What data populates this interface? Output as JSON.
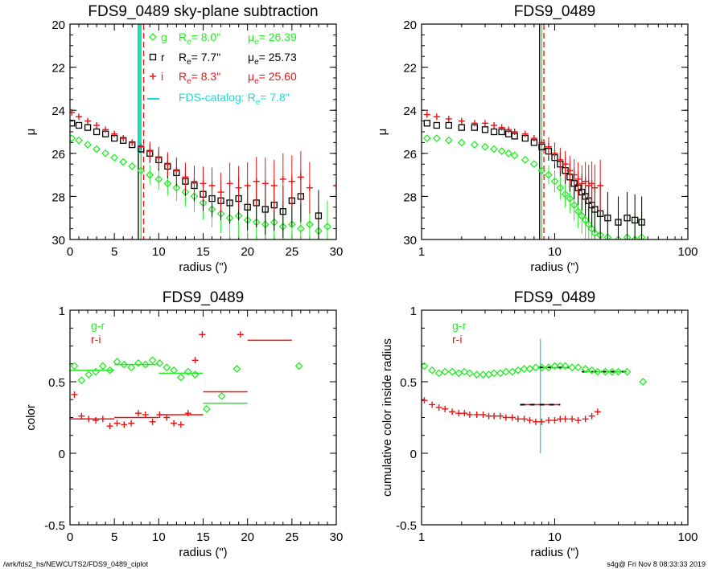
{
  "colors": {
    "g": "#22ee22",
    "r": "#000000",
    "i": "#ee1111",
    "catalog": "#11dddd"
  },
  "footer": {
    "left": "/wrk/fds2_hs/NEWCUTS2/FDS9_0489_ciplot",
    "right": "s4g@  Fri Nov  8 08:33:33 2019"
  },
  "chart_data": [
    {
      "id": "profile-linear",
      "type": "scatter",
      "title": "FDS9_0489 sky-plane subtraction",
      "xlabel": "radius (\")",
      "ylabel": "μ",
      "xlim": [
        0,
        30
      ],
      "ylim": [
        30,
        20
      ],
      "xticks": [
        0,
        5,
        10,
        15,
        20,
        25,
        30
      ],
      "yticks": [
        20,
        22,
        24,
        26,
        28,
        30
      ],
      "legend": {
        "placement": "top-right",
        "entries": [
          {
            "band": "g",
            "marker": "diamond",
            "re_label": "R",
            "re_sub": "e",
            "re_value": "=   8.0\"",
            "mu_label": "μ",
            "mu_sub": "e",
            "mu_value": "= 26.39"
          },
          {
            "band": "r",
            "marker": "square",
            "re_label": "R",
            "re_sub": "e",
            "re_value": "=   7.7\"",
            "mu_label": "μ",
            "mu_sub": "e",
            "mu_value": "= 25.73"
          },
          {
            "band": "i",
            "marker": "plus",
            "re_label": "R",
            "re_sub": "e",
            "re_value": "=   8.3\"",
            "mu_label": "μ",
            "mu_sub": "e",
            "mu_value": "= 25.60"
          }
        ],
        "catalog_prefix": "FDS-catalog: R",
        "catalog_sub": "e",
        "catalog_value": "=   7.8\""
      },
      "vlines": [
        {
          "band": "r",
          "x": 7.7,
          "style": "solid"
        },
        {
          "band": "g",
          "x": 8.0,
          "style": "solid"
        },
        {
          "band": "i",
          "x": 8.3,
          "style": "dashed"
        },
        {
          "band": "catalog",
          "x": 7.8,
          "style": "solid-thick",
          "ymin": 26.0
        }
      ],
      "series": [
        {
          "band": "g",
          "marker": "diamond",
          "x": [
            0.2,
            1,
            2,
            3,
            4,
            5,
            6,
            7,
            8,
            9,
            10,
            11,
            12,
            13,
            14,
            15,
            16,
            17,
            18,
            19,
            20,
            21,
            22,
            23,
            24,
            25,
            26,
            27,
            28,
            29
          ],
          "y": [
            25.3,
            25.4,
            25.6,
            25.8,
            26.0,
            26.2,
            26.4,
            26.6,
            26.8,
            27.0,
            27.2,
            27.4,
            27.6,
            27.8,
            28.0,
            28.3,
            28.6,
            28.8,
            29.0,
            28.9,
            29.1,
            29.2,
            29.3,
            29.2,
            29.4,
            29.3,
            29.5,
            29.3,
            29.6,
            29.4
          ]
        },
        {
          "band": "r",
          "marker": "square",
          "x": [
            0.2,
            1,
            2,
            3,
            4,
            5,
            6,
            7,
            8,
            9,
            10,
            11,
            12,
            13,
            14,
            15,
            16,
            17,
            18,
            19,
            20,
            21,
            22,
            23,
            24,
            25,
            26,
            28
          ],
          "y": [
            24.6,
            24.7,
            24.8,
            25.0,
            25.1,
            25.3,
            25.4,
            25.6,
            25.8,
            26.0,
            26.3,
            26.6,
            26.9,
            27.3,
            27.5,
            27.9,
            28.1,
            28.2,
            28.3,
            28.1,
            28.5,
            28.3,
            28.6,
            28.4,
            28.7,
            28.2,
            28.0,
            28.9
          ]
        },
        {
          "band": "i",
          "marker": "plus",
          "x": [
            0.2,
            1,
            2,
            3,
            4,
            5,
            6,
            7,
            8,
            9,
            10,
            11,
            12,
            13,
            14,
            15,
            16,
            17,
            18,
            19,
            20,
            21,
            22,
            23,
            24,
            25,
            26,
            27,
            30
          ],
          "y": [
            24.1,
            24.3,
            24.5,
            24.7,
            24.9,
            25.1,
            25.3,
            25.5,
            25.7,
            25.9,
            26.2,
            26.5,
            26.8,
            27.1,
            27.3,
            27.4,
            27.5,
            27.8,
            27.4,
            27.6,
            27.5,
            27.3,
            27.4,
            27.5,
            27.2,
            27.3,
            27.1,
            27.6,
            27.5
          ]
        }
      ]
    },
    {
      "id": "profile-log",
      "type": "scatter",
      "title": "FDS9_0489",
      "xlabel": "radius (\")",
      "ylabel": "μ",
      "xscale": "log",
      "xlim": [
        1,
        100
      ],
      "ylim": [
        30,
        20
      ],
      "xticks": [
        1,
        10,
        100
      ],
      "yticks": [
        20,
        22,
        24,
        26,
        28,
        30
      ],
      "vlines": [
        {
          "band": "r",
          "x": 7.7,
          "style": "solid"
        },
        {
          "band": "g",
          "x": 8.0,
          "style": "solid"
        },
        {
          "band": "i",
          "x": 8.3,
          "style": "dashed"
        }
      ],
      "series": [
        {
          "band": "g",
          "marker": "diamond",
          "x": [
            1.1,
            1.3,
            1.6,
            2,
            2.5,
            3,
            3.5,
            4,
            4.5,
            5,
            6,
            7,
            8,
            9,
            10,
            11,
            12,
            13,
            14,
            15,
            16,
            17,
            18,
            19,
            20,
            22,
            25,
            30,
            35,
            40,
            45
          ],
          "y": [
            25.3,
            25.3,
            25.4,
            25.5,
            25.6,
            25.7,
            25.8,
            25.9,
            26.0,
            26.1,
            26.3,
            26.5,
            26.8,
            27.0,
            27.3,
            27.6,
            27.9,
            28.1,
            28.4,
            28.7,
            28.9,
            29.1,
            29.3,
            29.5,
            29.7,
            29.8,
            29.9,
            30.0,
            29.9,
            30.0,
            29.9
          ]
        },
        {
          "band": "r",
          "marker": "square",
          "x": [
            1.1,
            1.3,
            1.6,
            2,
            2.5,
            3,
            3.5,
            4,
            4.5,
            5,
            6,
            7,
            8,
            9,
            10,
            11,
            12,
            13,
            14,
            15,
            16,
            17,
            18,
            19,
            20,
            22,
            25,
            30,
            35,
            40,
            45
          ],
          "y": [
            24.6,
            24.7,
            24.7,
            24.8,
            24.8,
            24.9,
            25.0,
            25.0,
            25.1,
            25.2,
            25.3,
            25.5,
            25.7,
            25.9,
            26.2,
            26.5,
            26.8,
            27.1,
            27.4,
            27.6,
            27.8,
            28.0,
            28.2,
            28.4,
            28.6,
            28.8,
            29.0,
            29.2,
            29.0,
            29.1,
            29.2
          ]
        },
        {
          "band": "i",
          "marker": "plus",
          "x": [
            1.1,
            1.3,
            1.6,
            2,
            2.5,
            3,
            3.5,
            4,
            4.5,
            5,
            6,
            7,
            8,
            9,
            10,
            11,
            12,
            13,
            14,
            15,
            16,
            17,
            18,
            19,
            20,
            22
          ],
          "y": [
            24.2,
            24.3,
            24.4,
            24.5,
            24.6,
            24.6,
            24.7,
            24.8,
            24.9,
            25.0,
            25.1,
            25.3,
            25.5,
            25.7,
            26.0,
            26.3,
            26.5,
            26.8,
            27.0,
            27.2,
            27.4,
            27.3,
            27.5,
            27.4,
            27.6,
            27.5
          ]
        }
      ]
    },
    {
      "id": "color-linear",
      "type": "scatter",
      "title": "FDS9_0489",
      "xlabel": "radius (\")",
      "ylabel": "color",
      "xlim": [
        0,
        30
      ],
      "ylim": [
        -0.5,
        1.0
      ],
      "xticks": [
        0,
        5,
        10,
        15,
        20,
        25,
        30
      ],
      "yticks": [
        -0.5,
        0.0,
        0.5,
        1.0
      ],
      "legend": {
        "placement": "top-left",
        "entries": [
          {
            "band": "g",
            "label": "g-r"
          },
          {
            "band": "i",
            "label": "r-i"
          }
        ]
      },
      "series": [
        {
          "band": "g",
          "name": "g-r",
          "marker": "diamond",
          "x": [
            0.5,
            1.3,
            2.1,
            2.9,
            3.7,
            4.5,
            5.3,
            6.1,
            6.9,
            7.7,
            8.5,
            9.3,
            10.1,
            10.9,
            11.7,
            12.5,
            13.3,
            14.1,
            15.4,
            17.1,
            18.8,
            25.8
          ],
          "y": [
            0.61,
            0.51,
            0.55,
            0.57,
            0.61,
            0.58,
            0.64,
            0.62,
            0.6,
            0.63,
            0.62,
            0.65,
            0.63,
            0.6,
            0.58,
            0.53,
            0.57,
            0.55,
            0.31,
            0.4,
            0.59,
            0.61
          ]
        },
        {
          "band": "i",
          "name": "r-i",
          "marker": "plus",
          "x": [
            0.5,
            1.3,
            2.1,
            2.9,
            3.7,
            4.5,
            5.3,
            6.1,
            6.9,
            7.7,
            8.5,
            9.3,
            10.1,
            10.9,
            11.7,
            12.5,
            13.3,
            14.1,
            14.9,
            19.2
          ],
          "y": [
            0.41,
            0.26,
            0.24,
            0.23,
            0.24,
            0.19,
            0.21,
            0.2,
            0.21,
            0.28,
            0.27,
            0.22,
            0.27,
            0.25,
            0.21,
            0.2,
            0.28,
            0.65,
            0.83,
            0.83
          ]
        }
      ],
      "segments": [
        {
          "band": "g",
          "x": [
            0.0,
            5.0
          ],
          "y": 0.58
        },
        {
          "band": "g",
          "x": [
            5.0,
            10.0
          ],
          "y": 0.62
        },
        {
          "band": "g",
          "x": [
            10.0,
            15.0
          ],
          "y": 0.56
        },
        {
          "band": "g",
          "x": [
            15.0,
            20.0
          ],
          "y": 0.35
        },
        {
          "band": "i",
          "x": [
            0.0,
            5.0
          ],
          "y": 0.24
        },
        {
          "band": "i",
          "x": [
            5.0,
            10.0
          ],
          "y": 0.25
        },
        {
          "band": "i",
          "x": [
            10.0,
            15.0
          ],
          "y": 0.27
        },
        {
          "band": "i",
          "x": [
            15.0,
            20.0
          ],
          "y": 0.43
        },
        {
          "band": "i",
          "x": [
            20.0,
            25.0
          ],
          "y": 0.79
        }
      ]
    },
    {
      "id": "cumulative-color-log",
      "type": "scatter",
      "title": "FDS9_0489",
      "xlabel": "radius (\")",
      "ylabel": "cumulative color inside radius",
      "xscale": "log",
      "xlim": [
        1,
        100
      ],
      "ylim": [
        -0.5,
        1.0
      ],
      "xticks": [
        1,
        10,
        100
      ],
      "yticks": [
        -0.5,
        0.0,
        0.5,
        1.0
      ],
      "legend": {
        "placement": "top-left",
        "entries": [
          {
            "band": "g",
            "label": "g-r"
          },
          {
            "band": "i",
            "label": "r-i"
          }
        ]
      },
      "vlines": [
        {
          "band": "catalog",
          "x": 7.8,
          "style": "solid",
          "ymin": 0.0,
          "ymax": 0.8
        }
      ],
      "series": [
        {
          "band": "g",
          "name": "g-r",
          "marker": "diamond",
          "x": [
            1.05,
            1.2,
            1.35,
            1.5,
            1.7,
            1.9,
            2.1,
            2.3,
            2.6,
            2.9,
            3.2,
            3.5,
            3.9,
            4.3,
            4.8,
            5.3,
            5.9,
            6.5,
            7.2,
            8,
            9,
            10,
            11,
            12,
            13.5,
            15,
            17,
            19,
            21,
            24,
            27,
            30,
            35,
            46
          ],
          "y": [
            0.61,
            0.58,
            0.56,
            0.57,
            0.57,
            0.56,
            0.57,
            0.56,
            0.55,
            0.55,
            0.55,
            0.56,
            0.56,
            0.57,
            0.57,
            0.58,
            0.59,
            0.59,
            0.6,
            0.6,
            0.6,
            0.61,
            0.61,
            0.61,
            0.6,
            0.6,
            0.59,
            0.58,
            0.57,
            0.57,
            0.57,
            0.57,
            0.57,
            0.5
          ]
        },
        {
          "band": "i",
          "name": "r-i",
          "marker": "plus",
          "x": [
            1.05,
            1.2,
            1.35,
            1.5,
            1.7,
            1.9,
            2.1,
            2.3,
            2.6,
            2.9,
            3.2,
            3.5,
            3.9,
            4.3,
            4.8,
            5.3,
            5.9,
            6.5,
            7.2,
            8,
            9,
            10,
            11,
            12,
            13.5,
            15,
            17,
            19,
            21
          ],
          "y": [
            0.37,
            0.34,
            0.32,
            0.31,
            0.29,
            0.28,
            0.28,
            0.27,
            0.27,
            0.27,
            0.26,
            0.26,
            0.26,
            0.25,
            0.25,
            0.24,
            0.24,
            0.23,
            0.22,
            0.22,
            0.23,
            0.23,
            0.24,
            0.24,
            0.24,
            0.23,
            0.24,
            0.26,
            0.29
          ]
        }
      ],
      "segments": [
        {
          "band": "g",
          "x": [
            7.5,
            13.0
          ],
          "y": 0.6,
          "dashed": true
        },
        {
          "band": "g",
          "x": [
            16.0,
            35.0
          ],
          "y": 0.57,
          "dashed": true
        },
        {
          "band": "i",
          "x": [
            5.5,
            11.0
          ],
          "y": 0.34,
          "dashed": true
        }
      ]
    }
  ]
}
